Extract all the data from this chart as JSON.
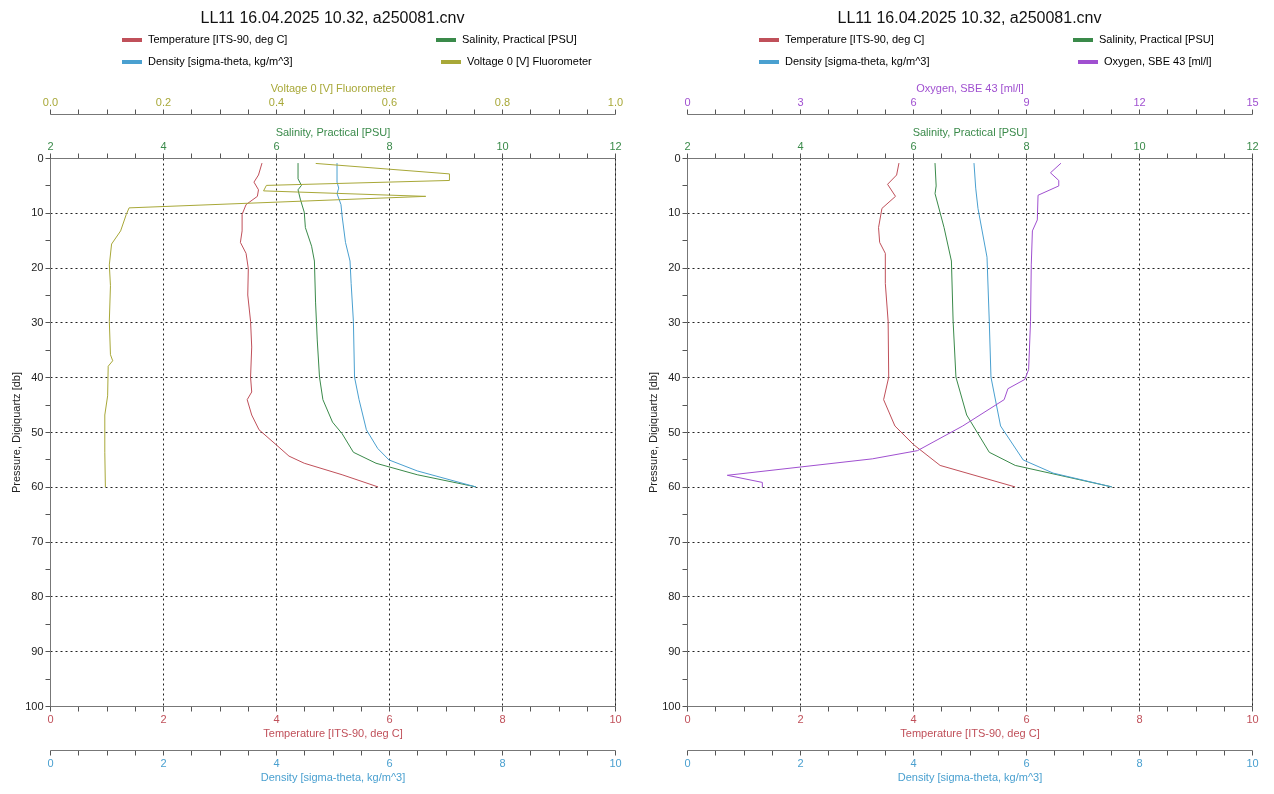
{
  "chart_data": [
    {
      "type": "line",
      "title": "LL11 16.04.2025 10.32, a250081.cnv",
      "legend": "top",
      "grid": true,
      "ylabel": "Pressure, Digiquartz [db]",
      "ylim": [
        100,
        0
      ],
      "yticks": [
        0,
        {
          "value": 5,
          "label": null
        },
        10,
        {
          "value": 15,
          "label": null
        },
        20,
        {
          "value": 25,
          "label": null
        },
        30,
        {
          "value": 35,
          "label": null
        },
        40,
        {
          "value": 45,
          "label": null
        },
        50,
        {
          "value": 55,
          "label": null
        },
        60,
        {
          "value": 65,
          "label": null
        },
        70,
        {
          "value": 75,
          "label": null
        },
        80,
        {
          "value": 85,
          "label": null
        },
        90,
        {
          "value": 95,
          "label": null
        },
        100
      ],
      "xlabel": "Temperature [ITS-90, deg C]",
      "xlim": [
        0,
        10
      ],
      "xticks": [
        0,
        {
          "value": 0.5,
          "label": null
        },
        {
          "value": 1,
          "label": null
        },
        {
          "value": 1.5,
          "label": null
        },
        2,
        {
          "value": 2.5,
          "label": null
        },
        {
          "value": 3,
          "label": null
        },
        {
          "value": 3.5,
          "label": null
        },
        4,
        {
          "value": 4.5,
          "label": null
        },
        {
          "value": 5,
          "label": null
        },
        {
          "value": 5.5,
          "label": null
        },
        6,
        {
          "value": 6.5,
          "label": null
        },
        {
          "value": 7,
          "label": null
        },
        {
          "value": 7.5,
          "label": null
        },
        8,
        {
          "value": 8.5,
          "label": null
        },
        {
          "value": 9,
          "label": null
        },
        {
          "value": 9.5,
          "label": null
        },
        10
      ],
      "x2label": "Salinity, Practical [PSU]",
      "x2lim": [
        2,
        12
      ],
      "x2ticks": [
        2,
        {
          "value": 2.5,
          "label": null
        },
        {
          "value": 3,
          "label": null
        },
        {
          "value": 3.5,
          "label": null
        },
        4,
        {
          "value": 4.5,
          "label": null
        },
        {
          "value": 5,
          "label": null
        },
        {
          "value": 5.5,
          "label": null
        },
        6,
        {
          "value": 6.5,
          "label": null
        },
        {
          "value": 7,
          "label": null
        },
        {
          "value": 7.5,
          "label": null
        },
        8,
        {
          "value": 8.5,
          "label": null
        },
        {
          "value": 9,
          "label": null
        },
        {
          "value": 9.5,
          "label": null
        },
        10,
        {
          "value": 10.5,
          "label": null
        },
        {
          "value": 11,
          "label": null
        },
        {
          "value": 11.5,
          "label": null
        },
        12
      ],
      "series": [
        {
          "name": "Temperature [ITS-90, deg C]",
          "color": "#c0505a",
          "x": [
            3.75,
            3.69,
            3.61,
            3.69,
            3.67,
            3.47,
            3.4,
            3.4,
            3.37,
            3.47,
            3.51,
            3.5,
            3.55,
            3.57,
            3.55,
            3.57,
            3.49,
            3.57,
            3.7,
            4.0,
            4.23,
            4.5,
            5.17,
            5.8
          ],
          "values": [
            1,
            3.1,
            4.4,
            5.8,
            7,
            8.5,
            10.3,
            13.3,
            15.4,
            17.4,
            20.2,
            25,
            29.8,
            34.5,
            40,
            42.7,
            44.1,
            46.9,
            49.6,
            52.3,
            54.4,
            55.7,
            57.8,
            60
          ]
        },
        {
          "name": "Salinity, Practical [PSU]",
          "color": "#3a8a4a",
          "axis": "x2",
          "x": [
            6.39,
            6.39,
            6.45,
            6.39,
            6.43,
            6.5,
            6.52,
            6.63,
            6.68,
            6.7,
            6.73,
            6.77,
            6.83,
            7.0,
            7.17,
            7.37,
            7.77,
            8.5,
            9.53
          ],
          "values": [
            1,
            3.8,
            5,
            5.8,
            7.5,
            9.9,
            12.7,
            16.1,
            18.8,
            26.3,
            33.2,
            40,
            44.1,
            48.2,
            50.3,
            53.7,
            55.7,
            57.8,
            60
          ]
        }
      ]
    },
    {
      "type": "line",
      "legend": "top",
      "tick_labels": "x",
      "ylim": [
        100,
        0
      ],
      "yticks": [
        0,
        10,
        20,
        30,
        40,
        50,
        60,
        70,
        80,
        90,
        100
      ],
      "xlabel": "Density [sigma-theta, kg/m^3]",
      "xlim": [
        0,
        10
      ],
      "xticks": [
        0,
        {
          "value": 0.5,
          "label": null
        },
        {
          "value": 1,
          "label": null
        },
        {
          "value": 1.5,
          "label": null
        },
        2,
        {
          "value": 2.5,
          "label": null
        },
        {
          "value": 3,
          "label": null
        },
        {
          "value": 3.5,
          "label": null
        },
        4,
        {
          "value": 4.5,
          "label": null
        },
        {
          "value": 5,
          "label": null
        },
        {
          "value": 5.5,
          "label": null
        },
        6,
        {
          "value": 6.5,
          "label": null
        },
        {
          "value": 7,
          "label": null
        },
        {
          "value": 7.5,
          "label": null
        },
        8,
        {
          "value": 8.5,
          "label": null
        },
        {
          "value": 9,
          "label": null
        },
        {
          "value": 9.5,
          "label": null
        },
        10
      ],
      "x2label": "Voltage 0 [V] Fluorometer",
      "x2lim": [
        0,
        1
      ],
      "x2ticks": [
        {
          "value": 0,
          "label": "0.0"
        },
        {
          "value": 0.05,
          "label": null
        },
        {
          "value": 0.1,
          "label": null
        },
        {
          "value": 0.15,
          "label": null
        },
        0.2,
        {
          "value": 0.25,
          "label": null
        },
        {
          "value": 0.3,
          "label": null
        },
        {
          "value": 0.35,
          "label": null
        },
        0.4,
        {
          "value": 0.45,
          "label": null
        },
        {
          "value": 0.5,
          "label": null
        },
        {
          "value": 0.55,
          "label": null
        },
        0.6,
        {
          "value": 0.65,
          "label": null
        },
        {
          "value": 0.7,
          "label": null
        },
        {
          "value": 0.75,
          "label": null
        },
        0.8,
        {
          "value": 0.85,
          "label": null
        },
        {
          "value": 0.9,
          "label": null
        },
        {
          "value": 0.95,
          "label": null
        },
        {
          "value": 1,
          "label": "1.0"
        }
      ],
      "series": [
        {
          "name": "Density [sigma-theta, kg/m^3]",
          "color": "#4aa0d0",
          "x": [
            5.08,
            5.08,
            5.11,
            5.08,
            5.15,
            5.17,
            5.23,
            5.31,
            5.33,
            5.37,
            5.39,
            5.47,
            5.6,
            5.8,
            6.0,
            6.5,
            7.53
          ],
          "values": [
            1,
            4.4,
            5.5,
            6.5,
            8.5,
            10.6,
            15.4,
            18.8,
            22.9,
            29.8,
            40,
            44.1,
            49.6,
            53,
            55.1,
            57.1,
            60
          ]
        },
        {
          "name": "Voltage 0 [V] Fluorometer",
          "color": "#a8a838",
          "axis": "x2",
          "x": [
            0.471,
            0.707,
            0.707,
            0.383,
            0.378,
            0.665,
            0.14,
            0.135,
            0.125,
            0.109,
            0.105,
            0.107,
            0.105,
            0.107,
            0.111,
            0.103,
            0.102,
            0.097,
            0.097,
            0.098
          ],
          "values": [
            1,
            2.9,
            4.1,
            5,
            6,
            7,
            9.1,
            10.3,
            13.3,
            15.7,
            19.5,
            23.3,
            29.8,
            35.9,
            37,
            38,
            43.4,
            46.9,
            53.7,
            60
          ]
        }
      ]
    },
    {
      "type": "line",
      "title": "LL11 16.04.2025 10.32, a250081.cnv",
      "legend": "top",
      "grid": true,
      "ylabel": "Pressure, Digiquartz [db]",
      "ylim": [
        100,
        0
      ],
      "yticks": [
        0,
        {
          "value": 5,
          "label": null
        },
        10,
        {
          "value": 15,
          "label": null
        },
        20,
        {
          "value": 25,
          "label": null
        },
        30,
        {
          "value": 35,
          "label": null
        },
        40,
        {
          "value": 45,
          "label": null
        },
        50,
        {
          "value": 55,
          "label": null
        },
        60,
        {
          "value": 65,
          "label": null
        },
        70,
        {
          "value": 75,
          "label": null
        },
        80,
        {
          "value": 85,
          "label": null
        },
        90,
        {
          "value": 95,
          "label": null
        },
        100
      ],
      "xlabel": "Temperature [ITS-90, deg C]",
      "xlim": [
        0,
        10
      ],
      "xticks": [
        0,
        {
          "value": 0.5,
          "label": null
        },
        {
          "value": 1,
          "label": null
        },
        {
          "value": 1.5,
          "label": null
        },
        2,
        {
          "value": 2.5,
          "label": null
        },
        {
          "value": 3,
          "label": null
        },
        {
          "value": 3.5,
          "label": null
        },
        4,
        {
          "value": 4.5,
          "label": null
        },
        {
          "value": 5,
          "label": null
        },
        {
          "value": 5.5,
          "label": null
        },
        6,
        {
          "value": 6.5,
          "label": null
        },
        {
          "value": 7,
          "label": null
        },
        {
          "value": 7.5,
          "label": null
        },
        8,
        {
          "value": 8.5,
          "label": null
        },
        {
          "value": 9,
          "label": null
        },
        {
          "value": 9.5,
          "label": null
        },
        10
      ],
      "x2label": "Salinity, Practical [PSU]",
      "x2lim": [
        2,
        12
      ],
      "x2ticks": [
        2,
        {
          "value": 2.5,
          "label": null
        },
        {
          "value": 3,
          "label": null
        },
        {
          "value": 3.5,
          "label": null
        },
        4,
        {
          "value": 4.5,
          "label": null
        },
        {
          "value": 5,
          "label": null
        },
        {
          "value": 5.5,
          "label": null
        },
        6,
        {
          "value": 6.5,
          "label": null
        },
        {
          "value": 7,
          "label": null
        },
        {
          "value": 7.5,
          "label": null
        },
        8,
        {
          "value": 8.5,
          "label": null
        },
        {
          "value": 9,
          "label": null
        },
        {
          "value": 9.5,
          "label": null
        },
        10,
        {
          "value": 10.5,
          "label": null
        },
        {
          "value": 11,
          "label": null
        },
        {
          "value": 11.5,
          "label": null
        },
        12
      ],
      "series": [
        {
          "name": "Temperature [ITS-90, deg C]",
          "color": "#c0505a",
          "x": [
            3.75,
            3.71,
            3.55,
            3.69,
            3.45,
            3.39,
            3.41,
            3.51,
            3.51,
            3.56,
            3.57,
            3.48,
            3.68,
            4.01,
            4.48,
            5.8
          ],
          "values": [
            1,
            3.1,
            4.8,
            7,
            9.2,
            12.7,
            15.4,
            17.4,
            22.9,
            29.8,
            40,
            44.1,
            48.9,
            52.3,
            56.1,
            60
          ]
        },
        {
          "name": "Salinity, Practical [PSU]",
          "color": "#3a8a4a",
          "axis": "x2",
          "x": [
            6.39,
            6.41,
            6.39,
            6.55,
            6.68,
            6.71,
            6.76,
            6.95,
            7.35,
            7.81,
            9.51
          ],
          "values": [
            1,
            5.1,
            6.5,
            12.7,
            18.8,
            29.8,
            40,
            46.9,
            53.7,
            56.1,
            60
          ]
        }
      ]
    },
    {
      "type": "line",
      "legend": "top",
      "tick_labels": "x",
      "ylim": [
        100,
        0
      ],
      "yticks": [
        0,
        10,
        20,
        30,
        40,
        50,
        60,
        70,
        80,
        90,
        100
      ],
      "xlabel": "Density [sigma-theta, kg/m^3]",
      "xlim": [
        0,
        10
      ],
      "xticks": [
        0,
        {
          "value": 0.5,
          "label": null
        },
        {
          "value": 1,
          "label": null
        },
        {
          "value": 1.5,
          "label": null
        },
        2,
        {
          "value": 2.5,
          "label": null
        },
        {
          "value": 3,
          "label": null
        },
        {
          "value": 3.5,
          "label": null
        },
        4,
        {
          "value": 4.5,
          "label": null
        },
        {
          "value": 5,
          "label": null
        },
        {
          "value": 5.5,
          "label": null
        },
        6,
        {
          "value": 6.5,
          "label": null
        },
        {
          "value": 7,
          "label": null
        },
        {
          "value": 7.5,
          "label": null
        },
        8,
        {
          "value": 8.5,
          "label": null
        },
        {
          "value": 9,
          "label": null
        },
        {
          "value": 9.5,
          "label": null
        },
        10
      ],
      "x2label": "Oxygen, SBE 43 [ml/l]",
      "x2lim": [
        0,
        15
      ],
      "x2ticks": [
        0,
        {
          "value": 0.75,
          "label": null
        },
        {
          "value": 1.5,
          "label": null
        },
        {
          "value": 2.25,
          "label": null
        },
        3,
        {
          "value": 3.75,
          "label": null
        },
        {
          "value": 4.5,
          "label": null
        },
        {
          "value": 5.25,
          "label": null
        },
        6,
        {
          "value": 6.75,
          "label": null
        },
        {
          "value": 7.5,
          "label": null
        },
        {
          "value": 8.25,
          "label": null
        },
        9,
        {
          "value": 9.75,
          "label": null
        },
        {
          "value": 10.5,
          "label": null
        },
        {
          "value": 11.25,
          "label": null
        },
        12,
        {
          "value": 12.75,
          "label": null
        },
        {
          "value": 13.5,
          "label": null
        },
        {
          "value": 14.25,
          "label": null
        },
        15
      ],
      "series": [
        {
          "name": "Density [sigma-theta, kg/m^3]",
          "color": "#4aa0d0",
          "x": [
            5.08,
            5.11,
            5.15,
            5.31,
            5.35,
            5.38,
            5.55,
            5.95,
            6.48,
            7.51
          ],
          "values": [
            1,
            5.5,
            9.2,
            18.1,
            29.8,
            40,
            48.9,
            55.1,
            57.5,
            60
          ]
        },
        {
          "name": "Oxygen, SBE 43 [ml/l]",
          "color": "#a050d0",
          "axis": "x2",
          "x": [
            9.92,
            9.65,
            9.87,
            9.87,
            9.32,
            9.3,
            9.17,
            9.14,
            9.12,
            9.07,
            8.97,
            8.52,
            8.42,
            7.32,
            6.12,
            4.92,
            1.07,
            2.0,
            2.0
          ],
          "values": [
            1,
            2.7,
            4.1,
            5.1,
            6.8,
            11.3,
            13.3,
            19.5,
            29.8,
            38.6,
            40.4,
            42.1,
            44.1,
            48.9,
            53.4,
            54.9,
            57.9,
            59.2,
            60
          ]
        }
      ]
    }
  ]
}
